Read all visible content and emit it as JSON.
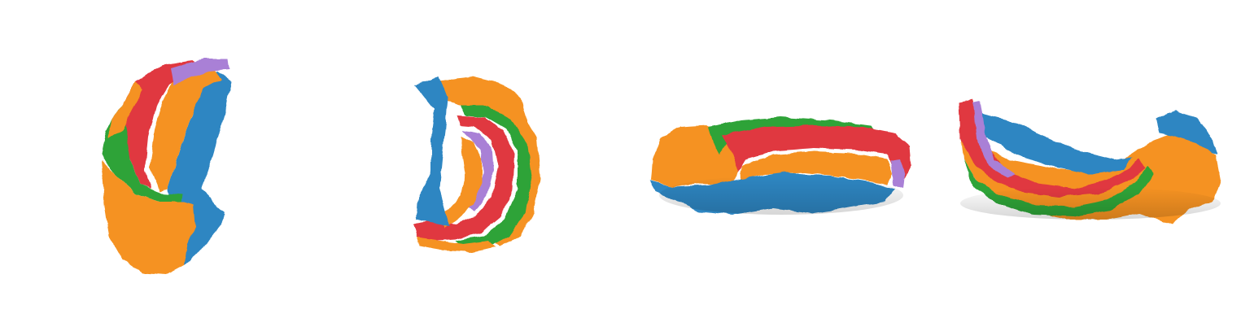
{
  "colors": {
    "background": "#ffffff",
    "blue": "#2f86c2",
    "orange": "#f59220",
    "green": "#2ea339",
    "red": "#e0393f",
    "purple": "#a980d6",
    "shadow": "#7a4a10"
  },
  "views": [
    {
      "id": "view-1",
      "regions": [
        "orange",
        "green",
        "red",
        "purple",
        "orange",
        "blue"
      ]
    },
    {
      "id": "view-2",
      "regions": [
        "blue",
        "orange",
        "red",
        "green",
        "purple",
        "orange",
        "blue"
      ]
    },
    {
      "id": "view-3",
      "regions": [
        "orange",
        "green",
        "red",
        "orange",
        "blue",
        "purple"
      ]
    },
    {
      "id": "view-4",
      "regions": [
        "blue",
        "orange",
        "red",
        "green",
        "purple",
        "orange",
        "blue"
      ]
    }
  ]
}
